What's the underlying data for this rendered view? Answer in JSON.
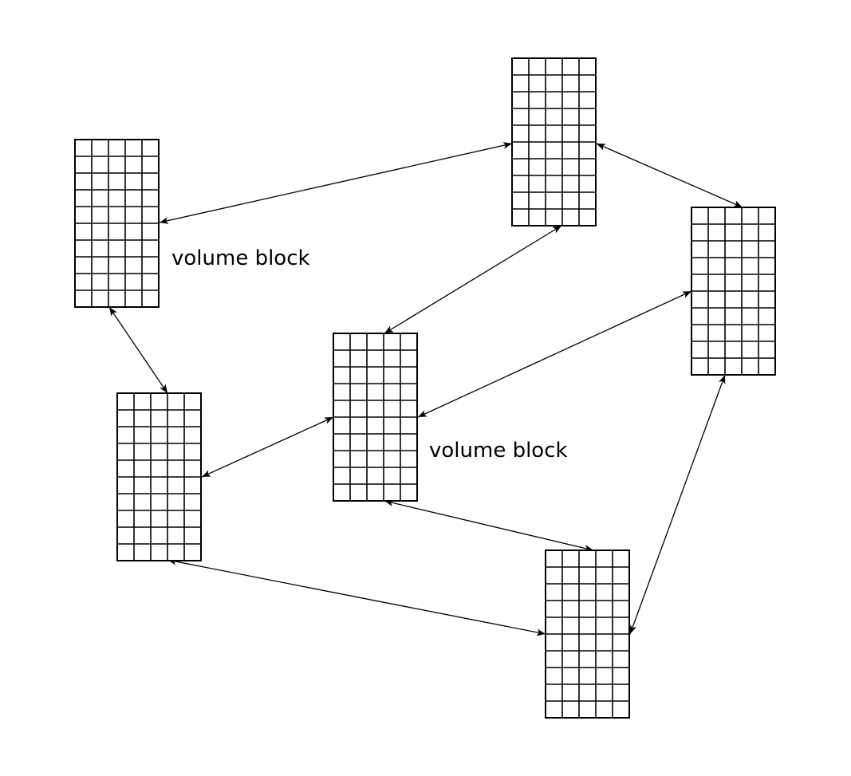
{
  "diagram": {
    "colors": {
      "background": "#ffffff",
      "stroke": "#000000"
    },
    "block_grid": {
      "columns": 5,
      "rows": 10
    },
    "blocks": [
      {
        "id": "left-top"
      },
      {
        "id": "top-right"
      },
      {
        "id": "right"
      },
      {
        "id": "center"
      },
      {
        "id": "left-bottom"
      },
      {
        "id": "bottom-right"
      }
    ],
    "connections": [
      {
        "from": "left-top",
        "to": "top-right",
        "bidirectional": true
      },
      {
        "from": "top-right",
        "to": "right",
        "bidirectional": true
      },
      {
        "from": "top-right",
        "to": "center",
        "bidirectional": true
      },
      {
        "from": "left-top",
        "to": "left-bottom",
        "bidirectional": true
      },
      {
        "from": "left-bottom",
        "to": "center",
        "bidirectional": true
      },
      {
        "from": "center",
        "to": "right",
        "bidirectional": true
      },
      {
        "from": "center",
        "to": "bottom-right",
        "bidirectional": true
      },
      {
        "from": "left-bottom",
        "to": "bottom-right",
        "bidirectional": true
      },
      {
        "from": "bottom-right",
        "to": "right",
        "bidirectional": true
      }
    ],
    "labels": [
      {
        "id": "label-1",
        "text": "volume block"
      },
      {
        "id": "label-2",
        "text": "volume block"
      }
    ]
  }
}
